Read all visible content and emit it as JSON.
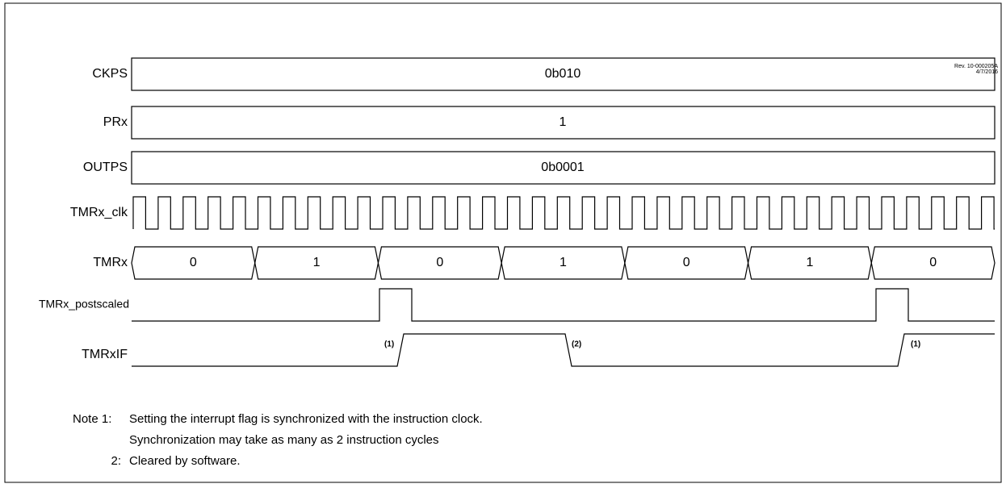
{
  "revision": [
    "Rev. 10-000205A",
    "4/7/2016"
  ],
  "signals": [
    {
      "label": "CKPS",
      "value": "0b010"
    },
    {
      "label": "PRx",
      "value": "1"
    },
    {
      "label": "OUTPS",
      "value": "0b0001"
    },
    {
      "label": "TMRx_clk"
    },
    {
      "label": "TMRx",
      "values": [
        "0",
        "1",
        "0",
        "1",
        "0",
        "1",
        "0"
      ]
    },
    {
      "label": "TMRx_postscaled"
    },
    {
      "label": "TMRxIF",
      "annotations": [
        "(1)",
        "(2)",
        "(1)"
      ]
    }
  ],
  "notes": [
    {
      "number": "Note 1:",
      "lines": [
        "Setting the interrupt flag is synchronized with the instruction clock.",
        "Synchronization may take as many as 2 instruction cycles"
      ]
    },
    {
      "number": "2:",
      "lines": [
        "Cleared by software."
      ]
    }
  ]
}
